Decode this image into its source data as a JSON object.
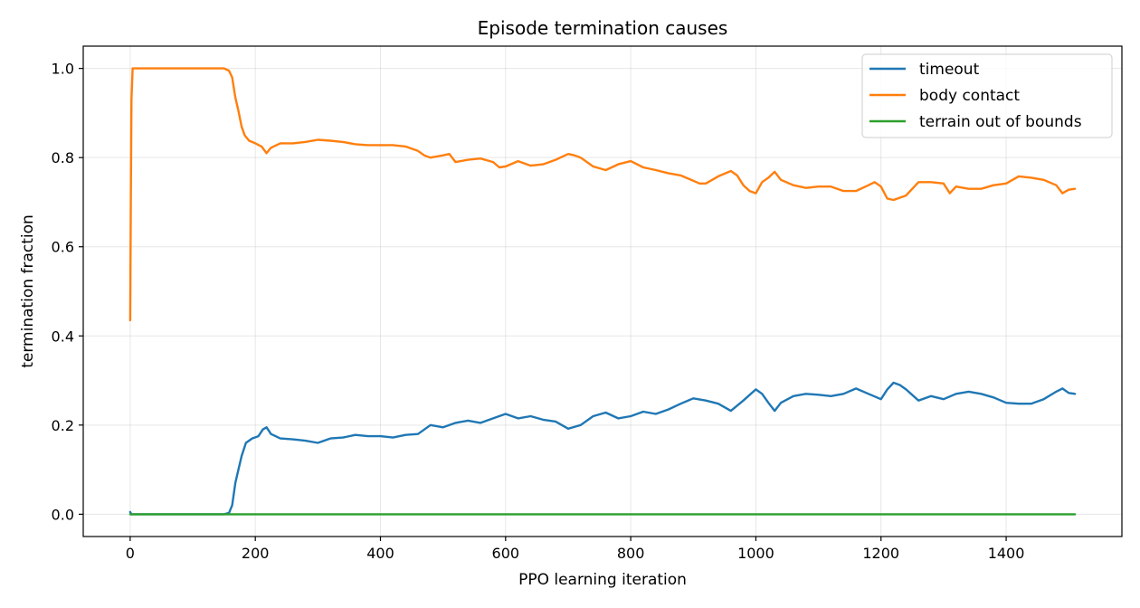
{
  "chart_data": {
    "type": "line",
    "title": "Episode termination causes",
    "xlabel": "PPO learning iteration",
    "ylabel": "termination fraction",
    "xlim": [
      -75,
      1585
    ],
    "ylim": [
      -0.05,
      1.05
    ],
    "xticks": [
      0,
      200,
      400,
      600,
      800,
      1000,
      1200,
      1400
    ],
    "xtick_labels": [
      "0",
      "200",
      "400",
      "600",
      "800",
      "1000",
      "1200",
      "1400"
    ],
    "yticks": [
      0.0,
      0.2,
      0.4,
      0.6,
      0.8,
      1.0
    ],
    "ytick_labels": [
      "0.0",
      "0.2",
      "0.4",
      "0.6",
      "0.8",
      "1.0"
    ],
    "grid": true,
    "legend_position": "top-right",
    "series": [
      {
        "name": "timeout",
        "color": "#1f77b4",
        "points": [
          [
            0,
            0.005
          ],
          [
            2,
            0.0
          ],
          [
            50,
            0.0
          ],
          [
            100,
            0.0
          ],
          [
            150,
            0.0
          ],
          [
            158,
            0.003
          ],
          [
            163,
            0.02
          ],
          [
            168,
            0.07
          ],
          [
            173,
            0.1
          ],
          [
            178,
            0.13
          ],
          [
            185,
            0.16
          ],
          [
            195,
            0.17
          ],
          [
            205,
            0.175
          ],
          [
            212,
            0.19
          ],
          [
            218,
            0.195
          ],
          [
            225,
            0.18
          ],
          [
            240,
            0.17
          ],
          [
            260,
            0.168
          ],
          [
            280,
            0.165
          ],
          [
            300,
            0.16
          ],
          [
            320,
            0.17
          ],
          [
            340,
            0.172
          ],
          [
            360,
            0.178
          ],
          [
            380,
            0.175
          ],
          [
            400,
            0.175
          ],
          [
            420,
            0.172
          ],
          [
            440,
            0.178
          ],
          [
            460,
            0.18
          ],
          [
            480,
            0.2
          ],
          [
            500,
            0.195
          ],
          [
            520,
            0.205
          ],
          [
            540,
            0.21
          ],
          [
            560,
            0.205
          ],
          [
            580,
            0.215
          ],
          [
            600,
            0.225
          ],
          [
            620,
            0.215
          ],
          [
            640,
            0.22
          ],
          [
            660,
            0.212
          ],
          [
            680,
            0.208
          ],
          [
            700,
            0.192
          ],
          [
            720,
            0.2
          ],
          [
            740,
            0.22
          ],
          [
            760,
            0.228
          ],
          [
            780,
            0.215
          ],
          [
            800,
            0.22
          ],
          [
            820,
            0.23
          ],
          [
            840,
            0.225
          ],
          [
            860,
            0.235
          ],
          [
            880,
            0.248
          ],
          [
            900,
            0.26
          ],
          [
            920,
            0.255
          ],
          [
            940,
            0.248
          ],
          [
            960,
            0.232
          ],
          [
            980,
            0.255
          ],
          [
            1000,
            0.28
          ],
          [
            1010,
            0.27
          ],
          [
            1020,
            0.25
          ],
          [
            1030,
            0.232
          ],
          [
            1040,
            0.25
          ],
          [
            1060,
            0.265
          ],
          [
            1080,
            0.27
          ],
          [
            1100,
            0.268
          ],
          [
            1120,
            0.265
          ],
          [
            1140,
            0.27
          ],
          [
            1160,
            0.282
          ],
          [
            1180,
            0.27
          ],
          [
            1200,
            0.258
          ],
          [
            1210,
            0.28
          ],
          [
            1220,
            0.295
          ],
          [
            1230,
            0.29
          ],
          [
            1240,
            0.28
          ],
          [
            1260,
            0.255
          ],
          [
            1280,
            0.265
          ],
          [
            1300,
            0.258
          ],
          [
            1320,
            0.27
          ],
          [
            1340,
            0.275
          ],
          [
            1360,
            0.27
          ],
          [
            1380,
            0.262
          ],
          [
            1400,
            0.25
          ],
          [
            1420,
            0.248
          ],
          [
            1440,
            0.248
          ],
          [
            1460,
            0.258
          ],
          [
            1480,
            0.275
          ],
          [
            1490,
            0.282
          ],
          [
            1500,
            0.272
          ],
          [
            1510,
            0.27
          ]
        ]
      },
      {
        "name": "body contact",
        "color": "#ff7f0e",
        "points": [
          [
            0,
            0.435
          ],
          [
            1,
            0.7
          ],
          [
            2,
            0.93
          ],
          [
            4,
            1.0
          ],
          [
            20,
            1.0
          ],
          [
            60,
            1.0
          ],
          [
            100,
            1.0
          ],
          [
            140,
            1.0
          ],
          [
            150,
            1.0
          ],
          [
            158,
            0.995
          ],
          [
            163,
            0.98
          ],
          [
            168,
            0.935
          ],
          [
            173,
            0.905
          ],
          [
            178,
            0.87
          ],
          [
            183,
            0.85
          ],
          [
            190,
            0.838
          ],
          [
            200,
            0.832
          ],
          [
            210,
            0.825
          ],
          [
            218,
            0.81
          ],
          [
            225,
            0.822
          ],
          [
            240,
            0.832
          ],
          [
            260,
            0.832
          ],
          [
            280,
            0.835
          ],
          [
            300,
            0.84
          ],
          [
            320,
            0.838
          ],
          [
            340,
            0.835
          ],
          [
            360,
            0.83
          ],
          [
            380,
            0.828
          ],
          [
            400,
            0.828
          ],
          [
            420,
            0.828
          ],
          [
            440,
            0.825
          ],
          [
            460,
            0.815
          ],
          [
            470,
            0.805
          ],
          [
            480,
            0.8
          ],
          [
            500,
            0.805
          ],
          [
            510,
            0.808
          ],
          [
            520,
            0.79
          ],
          [
            540,
            0.795
          ],
          [
            560,
            0.798
          ],
          [
            580,
            0.79
          ],
          [
            590,
            0.778
          ],
          [
            600,
            0.78
          ],
          [
            620,
            0.792
          ],
          [
            640,
            0.782
          ],
          [
            660,
            0.785
          ],
          [
            680,
            0.795
          ],
          [
            700,
            0.808
          ],
          [
            710,
            0.805
          ],
          [
            720,
            0.8
          ],
          [
            740,
            0.78
          ],
          [
            760,
            0.772
          ],
          [
            780,
            0.785
          ],
          [
            800,
            0.792
          ],
          [
            820,
            0.778
          ],
          [
            840,
            0.772
          ],
          [
            860,
            0.765
          ],
          [
            880,
            0.76
          ],
          [
            900,
            0.748
          ],
          [
            910,
            0.742
          ],
          [
            920,
            0.742
          ],
          [
            940,
            0.758
          ],
          [
            960,
            0.77
          ],
          [
            970,
            0.76
          ],
          [
            980,
            0.738
          ],
          [
            990,
            0.725
          ],
          [
            1000,
            0.72
          ],
          [
            1010,
            0.745
          ],
          [
            1020,
            0.755
          ],
          [
            1030,
            0.768
          ],
          [
            1040,
            0.75
          ],
          [
            1060,
            0.738
          ],
          [
            1080,
            0.732
          ],
          [
            1100,
            0.735
          ],
          [
            1120,
            0.735
          ],
          [
            1140,
            0.725
          ],
          [
            1160,
            0.725
          ],
          [
            1180,
            0.738
          ],
          [
            1190,
            0.745
          ],
          [
            1200,
            0.735
          ],
          [
            1210,
            0.708
          ],
          [
            1220,
            0.705
          ],
          [
            1240,
            0.715
          ],
          [
            1260,
            0.745
          ],
          [
            1280,
            0.745
          ],
          [
            1300,
            0.742
          ],
          [
            1310,
            0.72
          ],
          [
            1320,
            0.735
          ],
          [
            1340,
            0.73
          ],
          [
            1360,
            0.73
          ],
          [
            1380,
            0.738
          ],
          [
            1400,
            0.742
          ],
          [
            1420,
            0.758
          ],
          [
            1440,
            0.755
          ],
          [
            1460,
            0.75
          ],
          [
            1480,
            0.738
          ],
          [
            1490,
            0.72
          ],
          [
            1500,
            0.728
          ],
          [
            1510,
            0.73
          ]
        ]
      },
      {
        "name": "terrain out of bounds",
        "color": "#2ca02c",
        "points": [
          [
            0,
            0.0
          ],
          [
            1510,
            0.0
          ]
        ]
      }
    ]
  }
}
